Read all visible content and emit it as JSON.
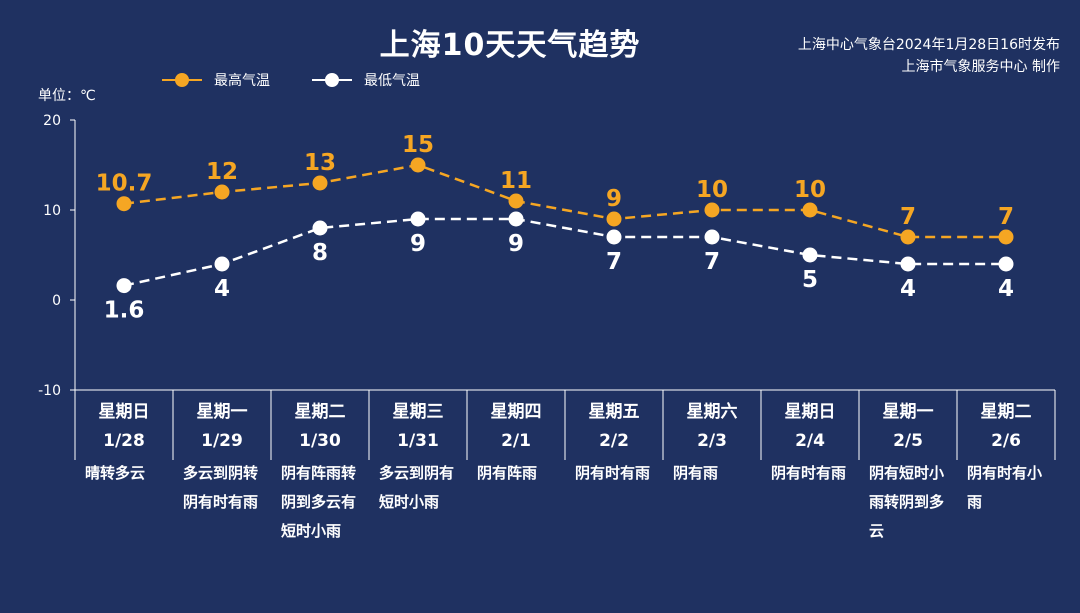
{
  "header": {
    "title": "上海10天天气趋势",
    "source_line1": "上海中心气象台2024年1月28日16时发布",
    "source_line2": "上海市气象服务中心 制作",
    "unit_label": "单位：℃"
  },
  "legend": {
    "high_label": "最高气温",
    "low_label": "最低气温"
  },
  "colors": {
    "background": "#1f3161",
    "high": "#f5a623",
    "low": "#ffffff",
    "axis": "#ffffff"
  },
  "chart_data": {
    "type": "line",
    "title": "上海10天天气趋势",
    "ylim": [
      -10,
      20
    ],
    "yticks": [
      -10,
      0,
      10,
      20
    ],
    "categories": [
      "1/28",
      "1/29",
      "1/30",
      "1/31",
      "2/1",
      "2/2",
      "2/3",
      "2/4",
      "2/5",
      "2/6"
    ],
    "series": [
      {
        "name": "最高气温",
        "values": [
          10.7,
          12,
          13,
          15,
          11,
          9,
          10,
          10,
          7,
          7
        ]
      },
      {
        "name": "最低气温",
        "values": [
          1.6,
          4,
          8,
          9,
          9,
          7,
          7,
          5,
          4,
          4
        ]
      }
    ],
    "legend_position": "top-left",
    "grid": false
  },
  "days": [
    {
      "weekday": "星期日",
      "date": "1/28",
      "weather": "晴转多云"
    },
    {
      "weekday": "星期一",
      "date": "1/29",
      "weather": "多云到阴转阴有时有雨"
    },
    {
      "weekday": "星期二",
      "date": "1/30",
      "weather": "阴有阵雨转阴到多云有短时小雨"
    },
    {
      "weekday": "星期三",
      "date": "1/31",
      "weather": "多云到阴有短时小雨"
    },
    {
      "weekday": "星期四",
      "date": "2/1",
      "weather": "阴有阵雨"
    },
    {
      "weekday": "星期五",
      "date": "2/2",
      "weather": "阴有时有雨"
    },
    {
      "weekday": "星期六",
      "date": "2/3",
      "weather": "阴有雨"
    },
    {
      "weekday": "星期日",
      "date": "2/4",
      "weather": "阴有时有雨"
    },
    {
      "weekday": "星期一",
      "date": "2/5",
      "weather": "阴有短时小雨转阴到多云"
    },
    {
      "weekday": "星期二",
      "date": "2/6",
      "weather": "阴有时有小雨"
    }
  ]
}
